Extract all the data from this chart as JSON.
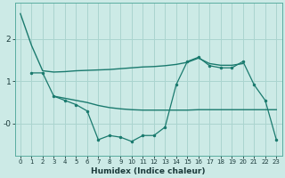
{
  "xlabel": "Humidex (Indice chaleur)",
  "x": [
    0,
    1,
    2,
    3,
    4,
    5,
    6,
    7,
    8,
    9,
    10,
    11,
    12,
    13,
    14,
    15,
    16,
    17,
    18,
    19,
    20,
    21,
    22,
    23
  ],
  "line1_y": [
    2.6,
    1.85,
    1.25,
    1.22,
    1.23,
    1.25,
    1.26,
    1.27,
    1.28,
    1.3,
    1.32,
    1.34,
    1.35,
    1.37,
    1.4,
    1.45,
    1.55,
    1.42,
    1.38,
    1.38,
    1.42,
    null,
    null,
    null
  ],
  "line2_y": [
    null,
    1.2,
    1.2,
    0.65,
    0.55,
    0.45,
    0.3,
    -0.38,
    -0.28,
    -0.32,
    -0.42,
    -0.28,
    -0.28,
    -0.08,
    0.92,
    1.47,
    1.57,
    1.37,
    1.32,
    1.32,
    1.47,
    0.92,
    0.55,
    -0.38
  ],
  "line3_y": [
    null,
    null,
    null,
    0.65,
    0.6,
    0.55,
    0.5,
    0.43,
    0.38,
    0.35,
    0.33,
    0.32,
    0.32,
    0.32,
    0.32,
    0.32,
    0.33,
    0.33,
    0.33,
    0.33,
    0.33,
    0.33,
    0.33,
    0.33
  ],
  "bg_color": "#cceae6",
  "line_color": "#1a7a6e",
  "grid_color": "#aad4cf",
  "ylim": [
    -0.75,
    2.85
  ],
  "xlim": [
    -0.5,
    23.5
  ],
  "ytick_vals": [
    0.0,
    1.0,
    2.0
  ],
  "ytick_labels": [
    "-0",
    "1",
    "2"
  ]
}
